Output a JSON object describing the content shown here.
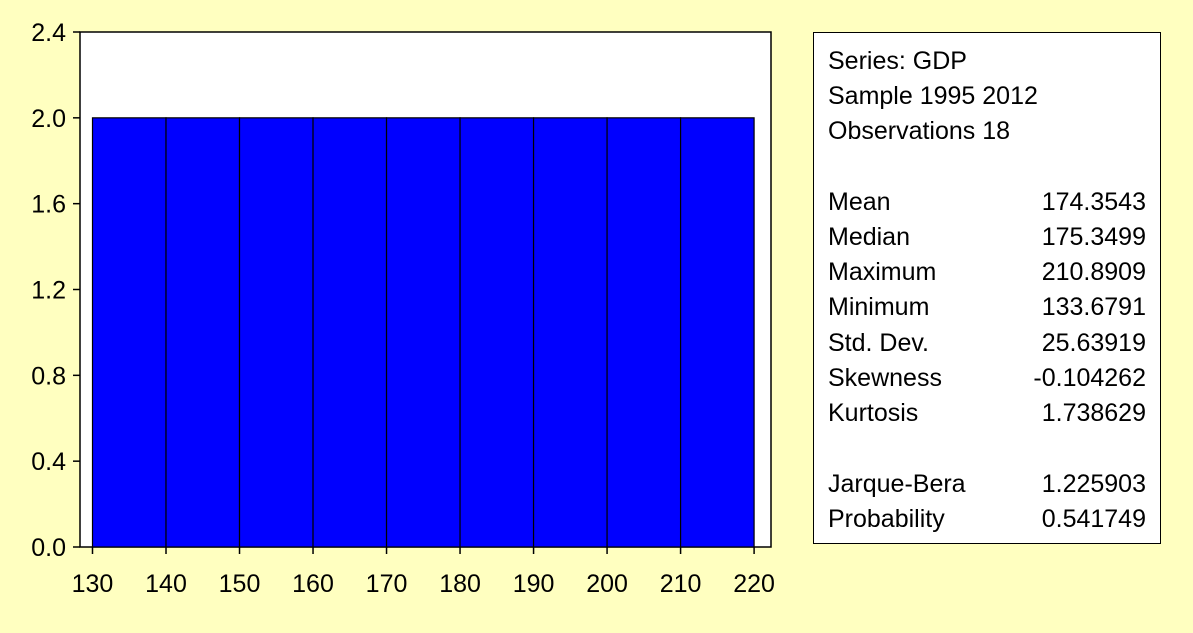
{
  "chart_data": {
    "type": "bar",
    "title": "",
    "xlabel": "",
    "ylabel": "",
    "bin_edges": [
      130,
      140,
      150,
      160,
      170,
      180,
      190,
      200,
      210,
      220
    ],
    "values": [
      2,
      2,
      2,
      2,
      2,
      2,
      2,
      2,
      2
    ],
    "x_ticks": [
      130,
      140,
      150,
      160,
      170,
      180,
      190,
      200,
      210,
      220
    ],
    "x_tick_labels": [
      "130",
      "140",
      "150",
      "160",
      "170",
      "180",
      "190",
      "200",
      "210",
      "220"
    ],
    "y_ticks": [
      0,
      0.4,
      0.8,
      1.2,
      1.6,
      2.0,
      2.4
    ],
    "y_tick_labels": [
      "0.0",
      "0.4",
      "0.8",
      "1.2",
      "1.6",
      "2.0",
      "2.4"
    ],
    "xlim": [
      128.3,
      222.3
    ],
    "ylim": [
      0,
      2.4
    ],
    "grid": false,
    "bar_color": "#0000FF",
    "bar_edge_color": "#000000",
    "background_color": "#FFFFC0",
    "plot_background_color": "#FFFFFF"
  },
  "stats": {
    "series_line": "Series: GDP",
    "sample_line": "Sample 1995 2012",
    "observations_line": "Observations 18",
    "rows": [
      {
        "label": "Mean",
        "value": "174.3543"
      },
      {
        "label": "Median",
        "value": "175.3499"
      },
      {
        "label": "Maximum",
        "value": "210.8909"
      },
      {
        "label": "Minimum",
        "value": "133.6791"
      },
      {
        "label": "Std. Dev.",
        "value": "25.63919"
      },
      {
        "label": "Skewness",
        "value": "-0.104262"
      },
      {
        "label": "Kurtosis",
        "value": "1.738629"
      },
      {
        "label": "Jarque-Bera",
        "value": "1.225903"
      },
      {
        "label": "Probability",
        "value": "0.541749"
      }
    ]
  }
}
